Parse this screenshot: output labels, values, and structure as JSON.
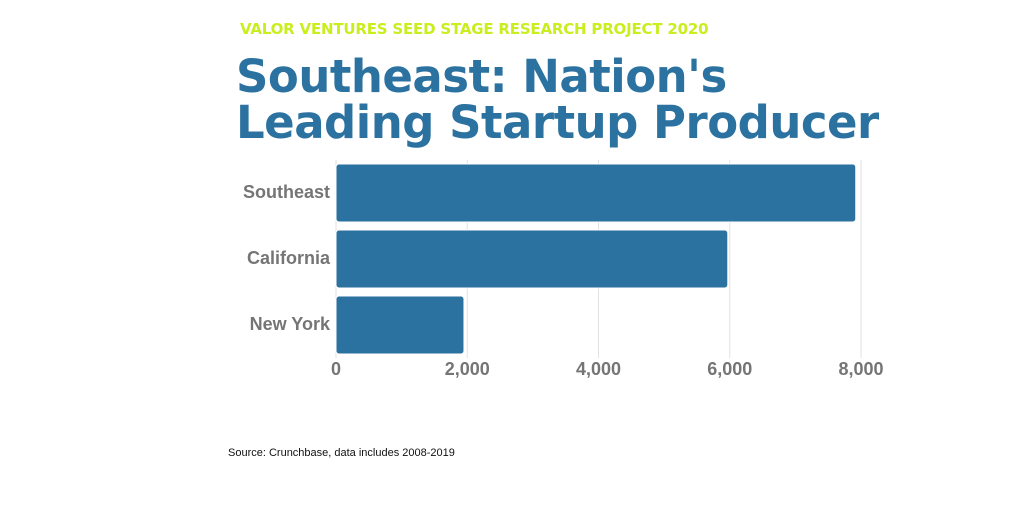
{
  "chart_data": {
    "type": "hbar",
    "subtitle": "VALOR VENTURES SEED STAGE RESEARCH PROJECT 2020",
    "title": "Southeast: Nation's Leading Startup Producer",
    "categories": [
      "Southeast",
      "California",
      "New York"
    ],
    "values": [
      7920,
      5970,
      1950
    ],
    "color": "#2b72a0",
    "xlim": [
      0,
      8000
    ],
    "xticks": [
      0,
      {
        "value": 2000,
        "label": "2,000"
      },
      {
        "value": 4000,
        "label": "4,000"
      },
      {
        "value": 6000,
        "label": "6,000"
      },
      {
        "value": 8000,
        "label": "8,000"
      }
    ],
    "grid": true,
    "source": "Source: Crunchbase, data includes 2008-2019"
  }
}
